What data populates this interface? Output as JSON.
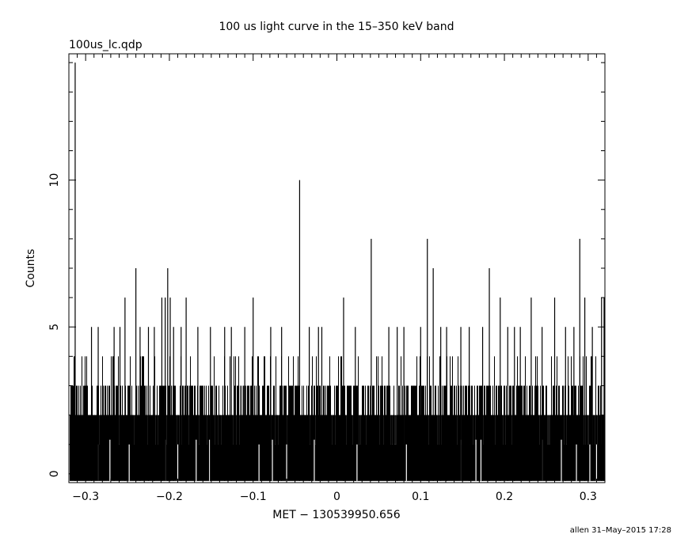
{
  "chart_data": {
    "type": "bar",
    "title": "100 us light curve in the 15–350 keV band",
    "file_label": "100us_lc.qdp",
    "xlabel": "MET − 130539950.656",
    "ylabel": "Counts",
    "footer": "allen 31–May–2015 17:28",
    "xlim": [
      -0.32,
      0.32
    ],
    "ylim": [
      -0.3,
      14.3
    ],
    "xticks": [
      -0.3,
      -0.2,
      -0.1,
      0,
      0.1,
      0.2,
      0.3
    ],
    "xtick_labels": [
      "−0.3",
      "−0.2",
      "−0.1",
      "0",
      "0.1",
      "0.2",
      "0.3"
    ],
    "yticks": [
      0,
      5,
      10
    ],
    "ytick_labels": [
      "0",
      "5",
      "10"
    ],
    "bin_width": 0.0001,
    "typical_count_range": [
      0,
      3
    ],
    "series": [
      {
        "name": "",
        "points": [
          {
            "x": -0.3125,
            "y": 14
          },
          {
            "x": -0.293,
            "y": 5
          },
          {
            "x": -0.285,
            "y": 5
          },
          {
            "x": -0.266,
            "y": 5
          },
          {
            "x": -0.259,
            "y": 5
          },
          {
            "x": -0.253,
            "y": 6
          },
          {
            "x": -0.24,
            "y": 7
          },
          {
            "x": -0.235,
            "y": 5
          },
          {
            "x": -0.225,
            "y": 5
          },
          {
            "x": -0.218,
            "y": 5
          },
          {
            "x": -0.209,
            "y": 6
          },
          {
            "x": -0.205,
            "y": 6
          },
          {
            "x": -0.202,
            "y": 7
          },
          {
            "x": -0.199,
            "y": 6
          },
          {
            "x": -0.195,
            "y": 5
          },
          {
            "x": -0.186,
            "y": 5
          },
          {
            "x": -0.18,
            "y": 6
          },
          {
            "x": -0.166,
            "y": 5
          },
          {
            "x": -0.151,
            "y": 5
          },
          {
            "x": -0.134,
            "y": 5
          },
          {
            "x": -0.126,
            "y": 5
          },
          {
            "x": -0.11,
            "y": 5
          },
          {
            "x": -0.1,
            "y": 6
          },
          {
            "x": -0.079,
            "y": 5
          },
          {
            "x": -0.066,
            "y": 5
          },
          {
            "x": -0.0445,
            "y": 10
          },
          {
            "x": -0.033,
            "y": 5
          },
          {
            "x": -0.022,
            "y": 5
          },
          {
            "x": -0.018,
            "y": 5
          },
          {
            "x": 0.008,
            "y": 6
          },
          {
            "x": 0.022,
            "y": 5
          },
          {
            "x": 0.041,
            "y": 8
          },
          {
            "x": 0.062,
            "y": 5
          },
          {
            "x": 0.072,
            "y": 5
          },
          {
            "x": 0.08,
            "y": 5
          },
          {
            "x": 0.1,
            "y": 5
          },
          {
            "x": 0.108,
            "y": 8
          },
          {
            "x": 0.115,
            "y": 7
          },
          {
            "x": 0.124,
            "y": 5
          },
          {
            "x": 0.131,
            "y": 5
          },
          {
            "x": 0.148,
            "y": 5
          },
          {
            "x": 0.158,
            "y": 5
          },
          {
            "x": 0.174,
            "y": 5
          },
          {
            "x": 0.182,
            "y": 7
          },
          {
            "x": 0.195,
            "y": 6
          },
          {
            "x": 0.204,
            "y": 5
          },
          {
            "x": 0.212,
            "y": 5
          },
          {
            "x": 0.219,
            "y": 5
          },
          {
            "x": 0.232,
            "y": 6
          },
          {
            "x": 0.245,
            "y": 5
          },
          {
            "x": 0.26,
            "y": 6
          },
          {
            "x": 0.273,
            "y": 5
          },
          {
            "x": 0.283,
            "y": 5
          },
          {
            "x": 0.29,
            "y": 8
          },
          {
            "x": 0.296,
            "y": 6
          },
          {
            "x": 0.305,
            "y": 5
          },
          {
            "x": 0.316,
            "y": 6
          },
          {
            "x": 0.319,
            "y": 6
          }
        ]
      }
    ]
  }
}
